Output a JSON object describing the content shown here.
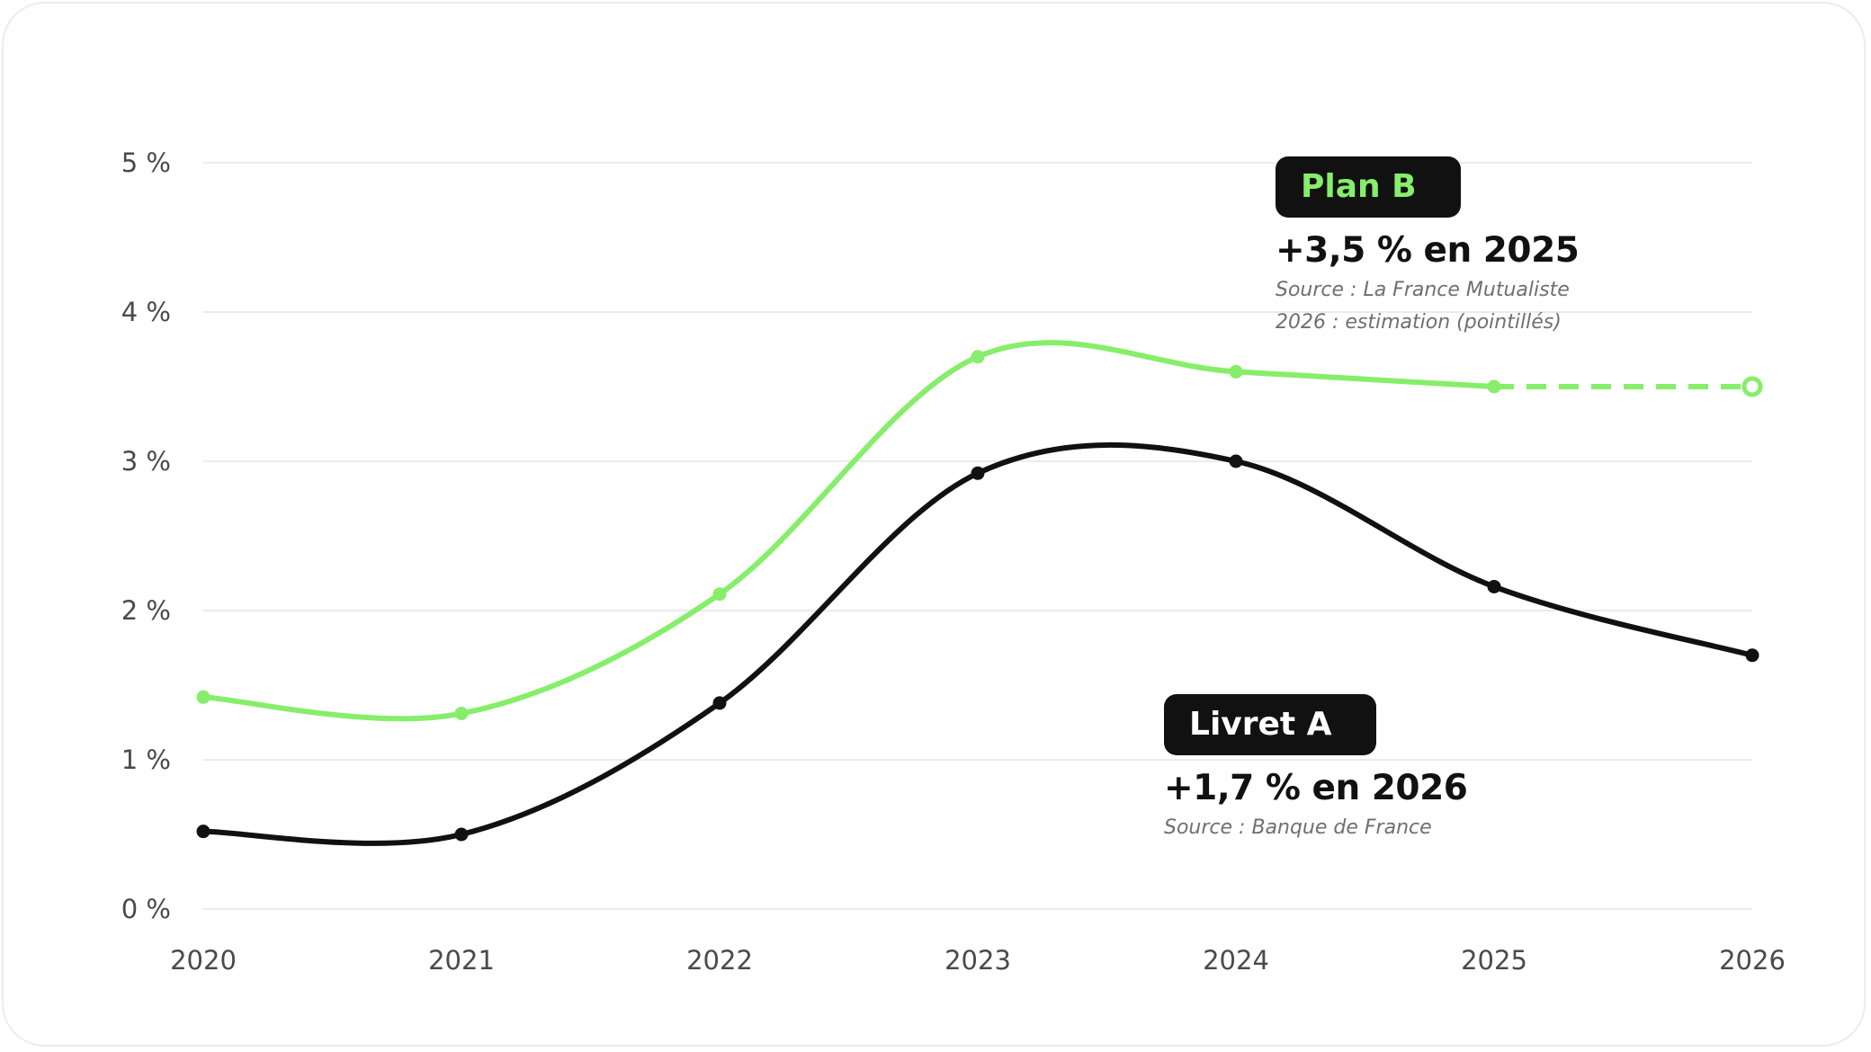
{
  "chart_data": {
    "type": "line",
    "x": [
      "2020",
      "2021",
      "2022",
      "2023",
      "2024",
      "2025",
      "2026"
    ],
    "ylim": [
      0,
      5
    ],
    "y_ticks": [
      "0 %",
      "1 %",
      "2 %",
      "3 %",
      "4 %",
      "5 %"
    ],
    "y_tick_values": [
      0,
      1,
      2,
      3,
      4,
      5
    ],
    "grid": true,
    "series": [
      {
        "name": "Plan B",
        "values": [
          1.42,
          1.31,
          2.11,
          3.7,
          3.6,
          3.5,
          3.5
        ],
        "color": "#86ee6a",
        "dashed_from_index": 5,
        "estimated_last_point": true
      },
      {
        "name": "Livret A",
        "values": [
          0.52,
          0.5,
          1.38,
          2.92,
          3.0,
          2.16,
          1.7
        ],
        "color": "#111111"
      }
    ],
    "annotations": [
      {
        "label": "Plan B",
        "headline": "+3,5 % en 2025",
        "notes": [
          "Source : La France Mutualiste",
          "2026 : estimation (pointillés)"
        ],
        "label_color": "#86ee6a"
      },
      {
        "label": "Livret A",
        "headline": "+1,7 % en 2026",
        "notes": [
          "Source : Banque de France"
        ],
        "label_color": "#ffffff"
      }
    ]
  }
}
